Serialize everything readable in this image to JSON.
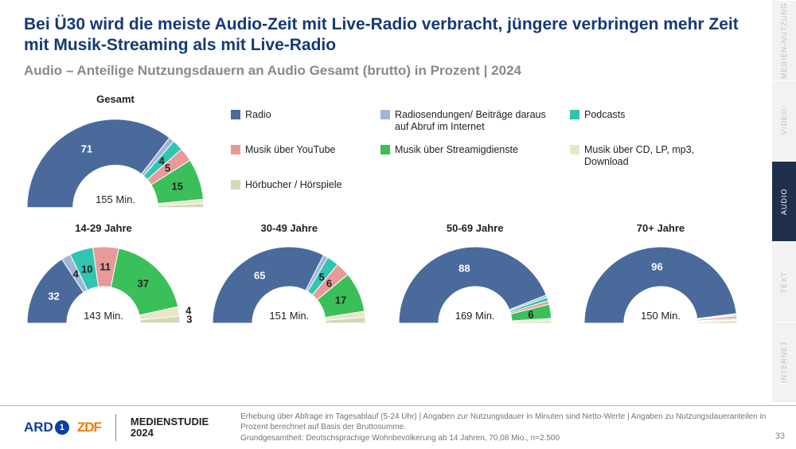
{
  "title": "Bei Ü30 wird die meiste Audio-Zeit mit Live-Radio verbracht, jüngere verbringen mehr Zeit mit Musik-Streaming als mit Live-Radio",
  "subtitle": "Audio – Anteilige Nutzungsdauern an Audio Gesamt (brutto) in Prozent | 2024",
  "colors": {
    "radio": "#4a6a9c",
    "radio_abruf": "#9fb6d9",
    "podcasts": "#2fc5b0",
    "youtube": "#e89a9a",
    "streaming": "#3bbf5a",
    "cd": "#e9e6c8",
    "hoerbuch": "#d6d9bb",
    "title": "#153a78",
    "subtitle": "#8a8a8a",
    "footer_border": "#b0b0b0",
    "tab_inactive_bg": "#f2f2f2",
    "tab_inactive_fg": "#bdbdbd",
    "tab_active_bg": "#20304c"
  },
  "legend": [
    {
      "label": "Radio",
      "color": "#4a6a9c"
    },
    {
      "label": "Radiosendungen/ Beiträge daraus auf Abruf im Internet",
      "color": "#9fb6d9"
    },
    {
      "label": "Podcasts",
      "color": "#2fc5b0"
    },
    {
      "label": "Musik über YouTube",
      "color": "#e89a9a"
    },
    {
      "label": "Musik über Streamigdienste",
      "color": "#3bbf5a"
    },
    {
      "label": "Musik über CD, LP, mp3, Download",
      "color": "#e9e6c8"
    },
    {
      "label": "Hörbucher / Hörspiele",
      "color": "#d6d9bb"
    }
  ],
  "charts": {
    "gesamt": {
      "title": "Gesamt",
      "center": "155 Min.",
      "size": 230,
      "segments": [
        {
          "value": 71,
          "color": "#4a6a9c",
          "show": "71",
          "labelColor": "#ffffff"
        },
        {
          "value": 2,
          "color": "#9fb6d9"
        },
        {
          "value": 4,
          "color": "#2fc5b0",
          "show": "4",
          "labelColor": "#222"
        },
        {
          "value": 5,
          "color": "#e89a9a",
          "show": "5",
          "labelColor": "#222"
        },
        {
          "value": 15,
          "color": "#3bbf5a",
          "show": "15",
          "labelColor": "#222"
        },
        {
          "value": 1.5,
          "color": "#e9e6c8"
        },
        {
          "value": 1.5,
          "color": "#d6d9bb"
        }
      ]
    },
    "g1": {
      "title": "14-29 Jahre",
      "center": "143 Min.",
      "size": 200,
      "segments": [
        {
          "value": 32,
          "color": "#4a6a9c",
          "show": "32",
          "labelColor": "#ffffff"
        },
        {
          "value": 4,
          "color": "#9fb6d9",
          "show": "4",
          "labelColor": "#222"
        },
        {
          "value": 10,
          "color": "#2fc5b0",
          "show": "10",
          "labelColor": "#222"
        },
        {
          "value": 11,
          "color": "#e89a9a",
          "show": "11",
          "labelColor": "#222"
        },
        {
          "value": 37,
          "color": "#3bbf5a",
          "show": "37",
          "labelColor": "#222"
        },
        {
          "value": 4,
          "color": "#e9e6c8",
          "show": "4",
          "labelColor": "#222",
          "outside": true
        },
        {
          "value": 3,
          "color": "#d6d9bb",
          "show": "3",
          "labelColor": "#222",
          "outside": true
        }
      ]
    },
    "g2": {
      "title": "30-49 Jahre",
      "center": "151 Min.",
      "size": 200,
      "segments": [
        {
          "value": 65,
          "color": "#4a6a9c",
          "show": "65",
          "labelColor": "#ffffff"
        },
        {
          "value": 2,
          "color": "#9fb6d9"
        },
        {
          "value": 5,
          "color": "#2fc5b0",
          "show": "5",
          "labelColor": "#222"
        },
        {
          "value": 6,
          "color": "#e89a9a",
          "show": "6",
          "labelColor": "#222"
        },
        {
          "value": 17,
          "color": "#3bbf5a",
          "show": "17",
          "labelColor": "#222"
        },
        {
          "value": 2.5,
          "color": "#e9e6c8"
        },
        {
          "value": 2.5,
          "color": "#d6d9bb"
        }
      ]
    },
    "g3": {
      "title": "50-69 Jahre",
      "center": "169 Min.",
      "size": 200,
      "segments": [
        {
          "value": 88,
          "color": "#4a6a9c",
          "show": "88",
          "labelColor": "#ffffff"
        },
        {
          "value": 1,
          "color": "#9fb6d9"
        },
        {
          "value": 1.5,
          "color": "#2fc5b0"
        },
        {
          "value": 1.5,
          "color": "#e89a9a"
        },
        {
          "value": 6,
          "color": "#3bbf5a",
          "show": "6",
          "labelColor": "#222"
        },
        {
          "value": 1,
          "color": "#e9e6c8"
        },
        {
          "value": 1,
          "color": "#d6d9bb"
        }
      ]
    },
    "g4": {
      "title": "70+ Jahre",
      "center": "150 Min.",
      "size": 200,
      "segments": [
        {
          "value": 96,
          "color": "#4a6a9c",
          "show": "96",
          "labelColor": "#ffffff"
        },
        {
          "value": 0.5,
          "color": "#9fb6d9"
        },
        {
          "value": 0.5,
          "color": "#2fc5b0"
        },
        {
          "value": 1,
          "color": "#e89a9a"
        },
        {
          "value": 0.5,
          "color": "#3bbf5a"
        },
        {
          "value": 0.5,
          "color": "#e9e6c8"
        },
        {
          "value": 1,
          "color": "#d6d9bb"
        }
      ]
    }
  },
  "side_tabs": [
    {
      "label": "MEDIEN-NUTZUNG",
      "active": false
    },
    {
      "label": "VIDEO",
      "active": false
    },
    {
      "label": "AUDIO",
      "active": true
    },
    {
      "label": "TEXT",
      "active": false
    },
    {
      "label": "INTERNET",
      "active": false
    }
  ],
  "footer": {
    "ard": "ARD",
    "zdf": "ZDF",
    "study": "MEDIENSTUDIE",
    "year": "2024",
    "note1": "Erhebung über Abfrage im Tagesablauf (5-24 Uhr) | Angaben zur Nutzungsdauer in Minuten sind Netto-Werte | Angaben zu Nutzungsdaueranteilen in Prozent berechnet auf Basis der Bruttosumme.",
    "note2": "Grundgesamtheit: Deutschsprachige Wohnbevölkerung ab 14 Jahren, 70,08 Mio., n=2.500",
    "page": "33"
  }
}
